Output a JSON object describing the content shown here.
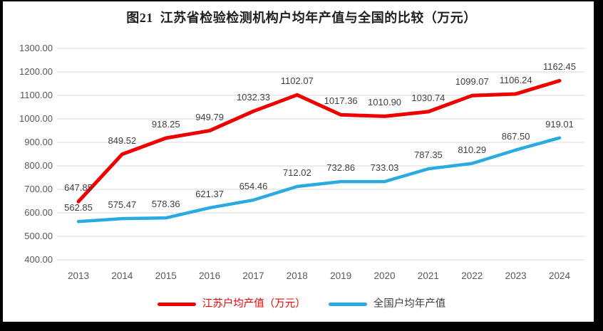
{
  "chart_data": {
    "type": "line",
    "title": "图21  江苏省检验检测机构户均年产值与全国的比较（万元）",
    "categories": [
      "2013",
      "2014",
      "2015",
      "2016",
      "2017",
      "2018",
      "2019",
      "2020",
      "2021",
      "2022",
      "2023",
      "2024"
    ],
    "series": [
      {
        "name": "江苏户均产值（万元）",
        "color": "#ee0000",
        "values": [
          647.85,
          849.52,
          918.25,
          949.79,
          1032.33,
          1102.07,
          1017.36,
          1010.9,
          1030.74,
          1099.07,
          1106.24,
          1162.45
        ]
      },
      {
        "name": "全国户均年产值",
        "color": "#29abe2",
        "values": [
          562.85,
          575.47,
          578.36,
          621.37,
          654.46,
          712.02,
          732.86,
          733.03,
          787.35,
          810.29,
          867.5,
          919.01
        ]
      }
    ],
    "ylim": [
      400,
      1300
    ],
    "ytick_step": 100,
    "ytick_labels": [
      "400.00",
      "500.00",
      "600.00",
      "700.00",
      "800.00",
      "900.00",
      "1000.00",
      "1100.00",
      "1200.00",
      "1300.00"
    ],
    "value_format_decimals": 2,
    "grid": "horizontal",
    "legend_position": "bottom",
    "colors": {
      "gridline": "#d9d9d9",
      "tick_label": "#595959",
      "data_label": "#404040",
      "title": "#1f1f1f",
      "panel_background": "#ffffff",
      "frame": "#000000"
    }
  }
}
